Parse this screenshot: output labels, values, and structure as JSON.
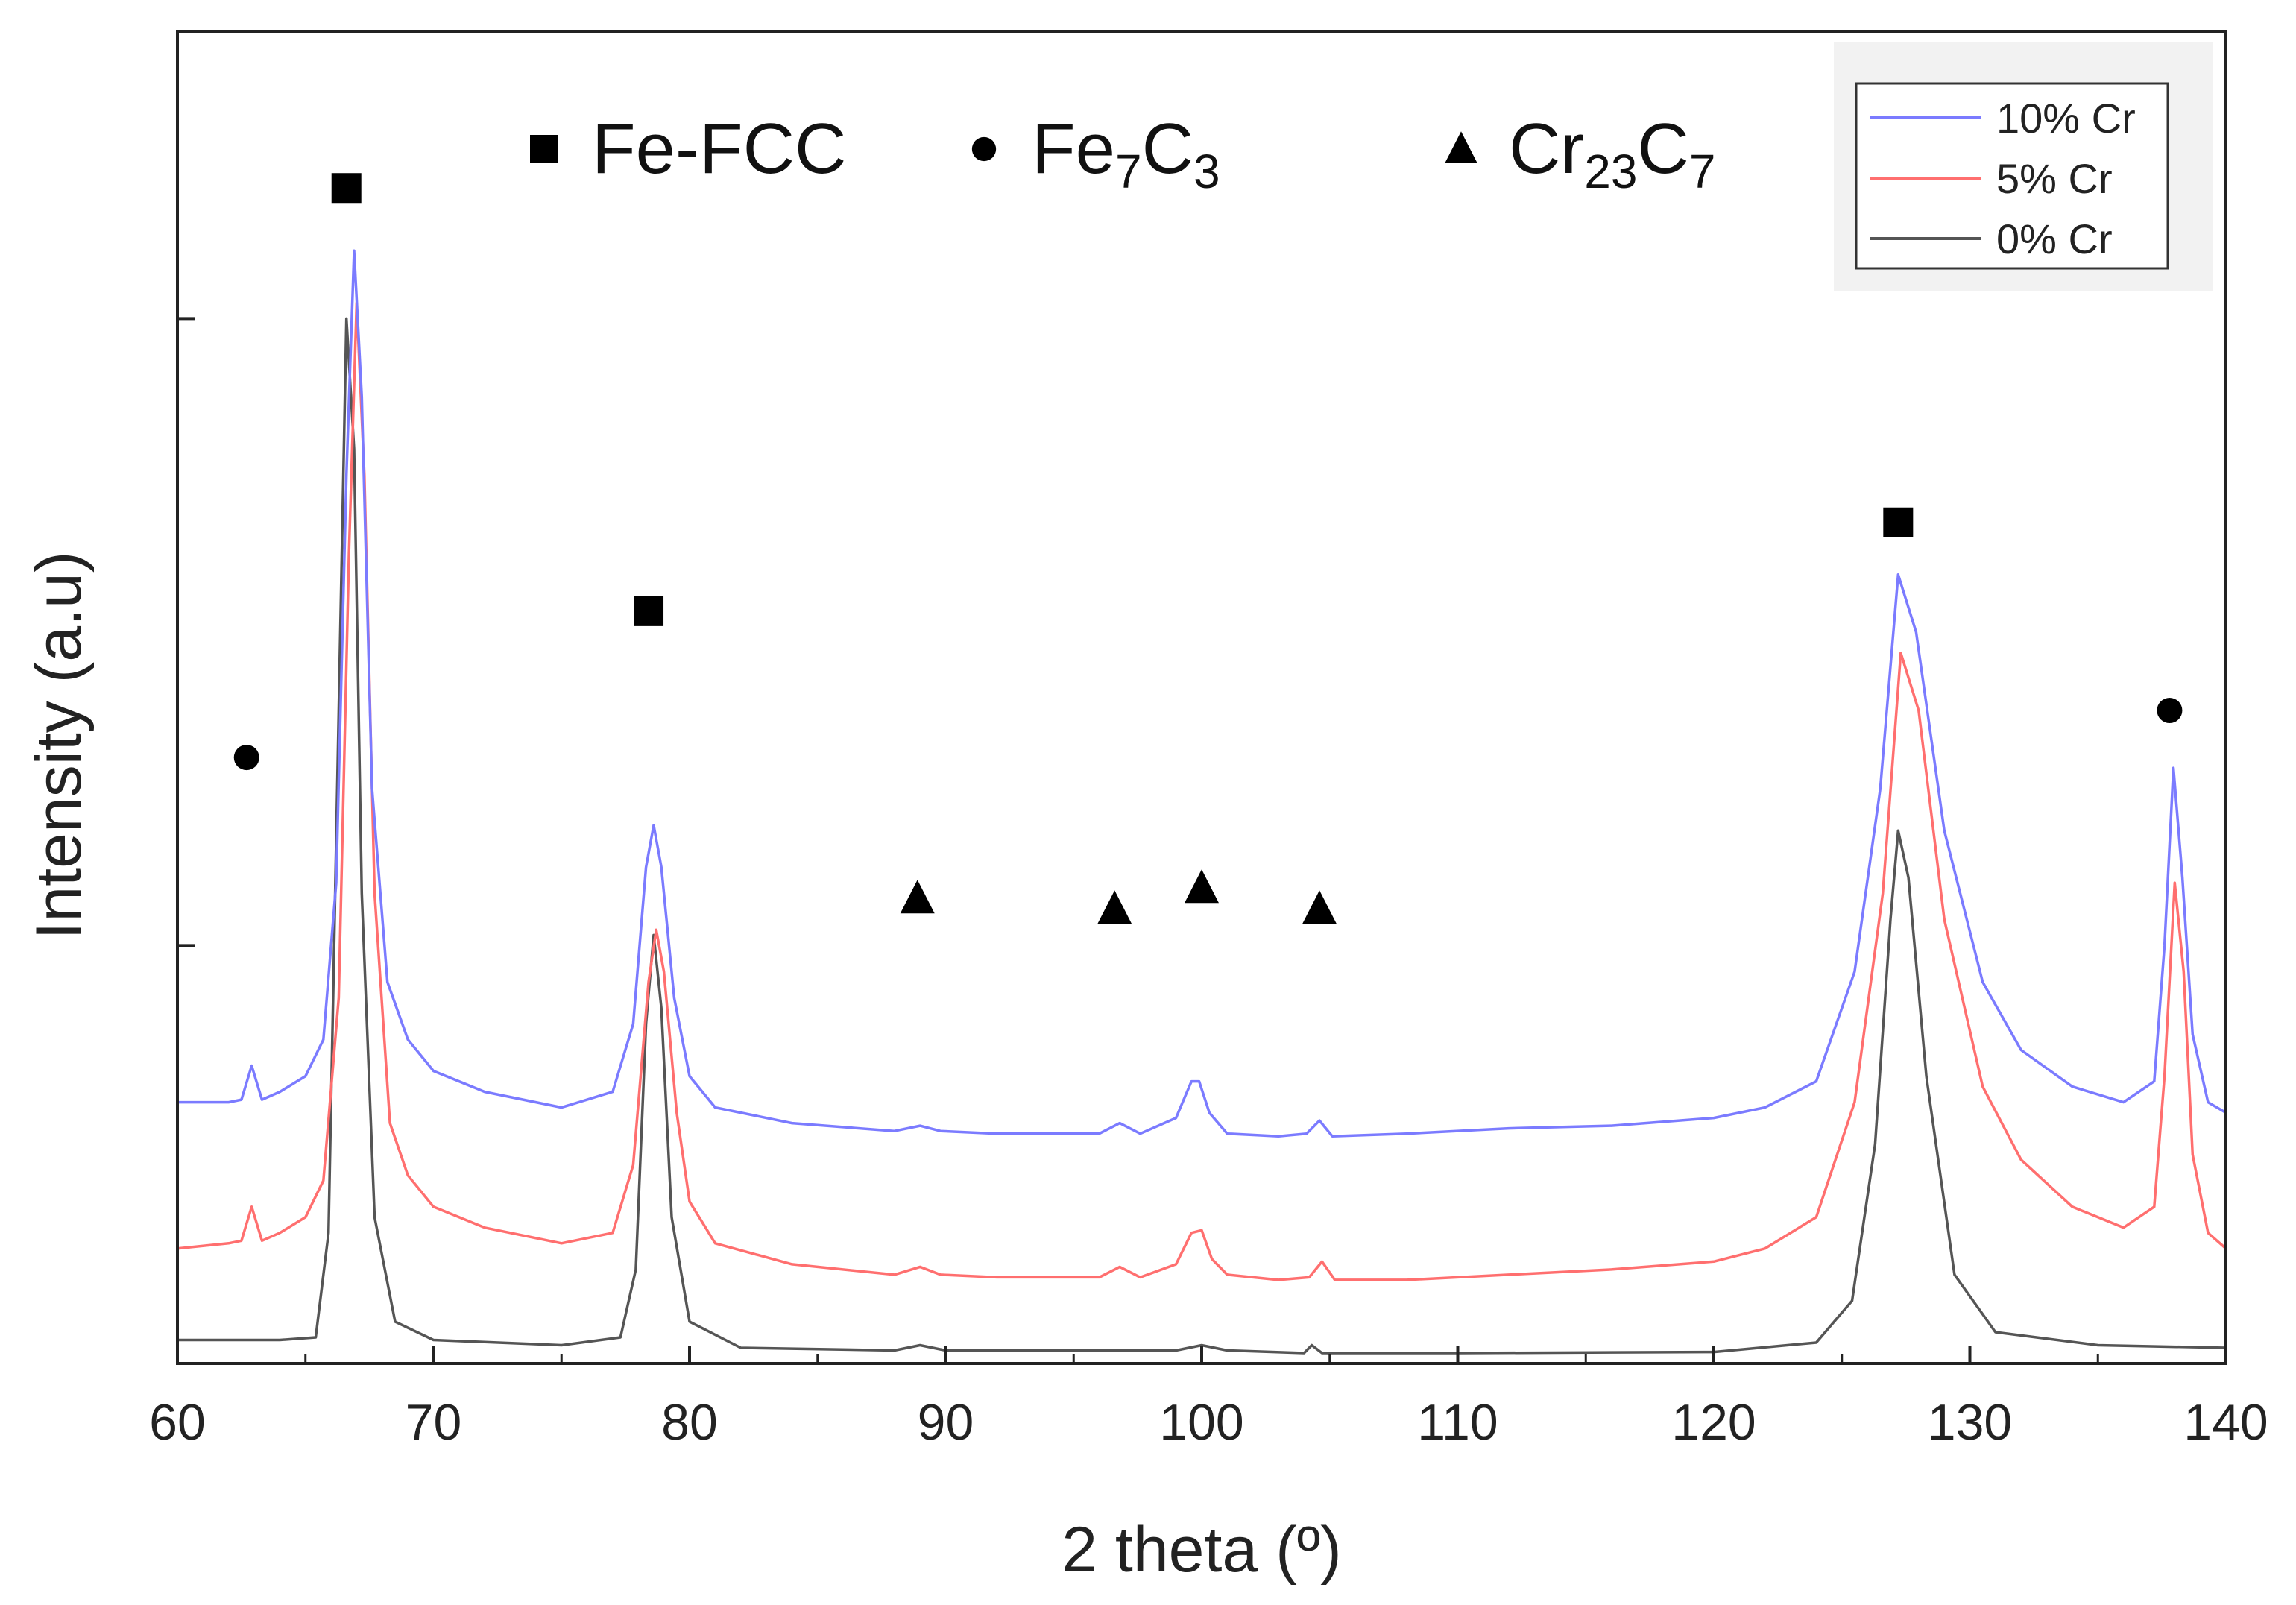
{
  "chart_data": {
    "type": "line",
    "title": "",
    "xlabel": "2 theta (º)",
    "ylabel": "Intensity (a.u)",
    "xlim": [
      60,
      140
    ],
    "xticks": [
      60,
      70,
      80,
      90,
      100,
      110,
      120,
      130,
      140
    ],
    "yticks_labeled": false,
    "grid": false,
    "legend_position": "top-right",
    "series": [
      {
        "name": "10% Cr",
        "color": "#7b7bff",
        "x": [
          60,
          62,
          62.5,
          62.9,
          63.3,
          64,
          65,
          65.7,
          66.2,
          66.6,
          66.9,
          67.2,
          67.6,
          68.2,
          69,
          70,
          72,
          75,
          77,
          77.8,
          78.3,
          78.6,
          78.9,
          79.4,
          80,
          81,
          84,
          88,
          89,
          89.8,
          92,
          96,
          96.8,
          97.6,
          99,
          99.6,
          99.9,
          100.3,
          101,
          103,
          104.1,
          104.6,
          105.1,
          108,
          112,
          116,
          120,
          122,
          124,
          125.5,
          126.5,
          127.2,
          127.9,
          129,
          130.5,
          132,
          134,
          136,
          137.2,
          137.6,
          137.95,
          138.3,
          138.7,
          139.3,
          140
        ],
        "y": [
          5.0,
          5.0,
          5.05,
          5.7,
          5.05,
          5.2,
          5.5,
          6.2,
          9.2,
          17.0,
          21.3,
          18.5,
          11.0,
          7.3,
          6.2,
          5.6,
          5.2,
          4.9,
          5.2,
          6.5,
          9.5,
          10.3,
          9.5,
          7.0,
          5.5,
          4.9,
          4.6,
          4.45,
          4.55,
          4.45,
          4.4,
          4.4,
          4.6,
          4.4,
          4.7,
          5.4,
          5.4,
          4.8,
          4.4,
          4.35,
          4.4,
          4.65,
          4.35,
          4.4,
          4.5,
          4.55,
          4.7,
          4.9,
          5.4,
          7.5,
          11.0,
          15.1,
          14.0,
          10.2,
          7.3,
          6.0,
          5.3,
          5.0,
          5.4,
          8.0,
          11.4,
          9.3,
          6.3,
          5.0,
          4.8
        ]
      },
      {
        "name": "5% Cr",
        "color": "#ff6f6f",
        "x": [
          60,
          62,
          62.5,
          62.9,
          63.3,
          64,
          65,
          65.7,
          66.3,
          66.7,
          67.0,
          67.3,
          67.7,
          68.3,
          69,
          70,
          72,
          75,
          77,
          77.8,
          78.4,
          78.7,
          79.0,
          79.5,
          80,
          81,
          84,
          88,
          89,
          89.8,
          92,
          96,
          96.8,
          97.6,
          99,
          99.6,
          100,
          100.4,
          101,
          103,
          104.2,
          104.7,
          105.2,
          108,
          112,
          116,
          120,
          122,
          124,
          125.5,
          126.6,
          127.3,
          128.0,
          129,
          130.5,
          132,
          134,
          136,
          137.2,
          137.6,
          138.0,
          138.35,
          138.7,
          139.3,
          140
        ],
        "y": [
          2.2,
          2.3,
          2.35,
          3.0,
          2.35,
          2.5,
          2.8,
          3.5,
          7.0,
          15.5,
          20.3,
          17.0,
          9.0,
          4.6,
          3.6,
          3.0,
          2.6,
          2.3,
          2.5,
          3.8,
          7.3,
          8.3,
          7.5,
          4.8,
          3.1,
          2.3,
          1.9,
          1.7,
          1.85,
          1.7,
          1.65,
          1.65,
          1.85,
          1.65,
          1.9,
          2.5,
          2.55,
          2.0,
          1.7,
          1.6,
          1.65,
          1.95,
          1.6,
          1.6,
          1.7,
          1.8,
          1.95,
          2.2,
          2.8,
          5.0,
          9.0,
          13.6,
          12.5,
          8.5,
          5.3,
          3.9,
          3.0,
          2.6,
          3.0,
          5.5,
          9.2,
          7.5,
          4.0,
          2.5,
          2.2
        ]
      },
      {
        "name": "0% Cr",
        "color": "#555555",
        "x": [
          60,
          64,
          65.4,
          65.9,
          66.3,
          66.6,
          66.9,
          67.2,
          67.7,
          68.5,
          70,
          75,
          77.3,
          77.9,
          78.3,
          78.6,
          78.9,
          79.3,
          80,
          82,
          88,
          89,
          90,
          99,
          99.5,
          100,
          101,
          104,
          104.3,
          104.7,
          110,
          120,
          124,
          125.4,
          126.3,
          126.9,
          127.2,
          127.6,
          128.3,
          129.4,
          131,
          135,
          140
        ],
        "y": [
          0.45,
          0.45,
          0.5,
          2.5,
          12.5,
          20.0,
          17.5,
          9.0,
          2.8,
          0.8,
          0.45,
          0.35,
          0.5,
          1.8,
          6.5,
          8.2,
          6.8,
          2.8,
          0.8,
          0.3,
          0.25,
          0.35,
          0.25,
          0.25,
          0.3,
          0.35,
          0.25,
          0.2,
          0.35,
          0.2,
          0.2,
          0.22,
          0.4,
          1.2,
          4.2,
          8.5,
          10.2,
          9.3,
          5.5,
          1.7,
          0.6,
          0.35,
          0.3
        ]
      }
    ],
    "ylim": [
      0,
      25.5
    ],
    "markers": [
      {
        "phase": "Fe7C3",
        "symbol": "circle",
        "x": 62.7,
        "y": 11.6
      },
      {
        "phase": "Fe-FCC",
        "symbol": "square",
        "x": 66.6,
        "y": 22.5
      },
      {
        "phase": "Fe-FCC",
        "symbol": "square",
        "x": 78.4,
        "y": 14.4
      },
      {
        "phase": "Cr23C7",
        "symbol": "triangle",
        "x": 88.9,
        "y": 8.9
      },
      {
        "phase": "Cr23C7",
        "symbol": "triangle",
        "x": 96.6,
        "y": 8.7
      },
      {
        "phase": "Cr23C7",
        "symbol": "triangle",
        "x": 100.0,
        "y": 9.1
      },
      {
        "phase": "Cr23C7",
        "symbol": "triangle",
        "x": 104.6,
        "y": 8.7
      },
      {
        "phase": "Fe-FCC",
        "symbol": "square",
        "x": 127.2,
        "y": 16.1
      },
      {
        "phase": "Fe7C3",
        "symbol": "circle",
        "x": 137.8,
        "y": 12.5
      }
    ],
    "phase_legend": [
      {
        "symbol": "square",
        "label": "Fe-FCC",
        "parts": [
          [
            "Fe-FCC",
            false
          ]
        ]
      },
      {
        "symbol": "circle",
        "label": "Fe7C3",
        "parts": [
          [
            "Fe",
            false
          ],
          [
            "7",
            true
          ],
          [
            "C",
            false
          ],
          [
            "3",
            true
          ]
        ]
      },
      {
        "symbol": "triangle",
        "label": "Cr23C7",
        "parts": [
          [
            "Cr",
            false
          ],
          [
            "23",
            true
          ],
          [
            "C",
            false
          ],
          [
            "7",
            true
          ]
        ]
      }
    ]
  }
}
